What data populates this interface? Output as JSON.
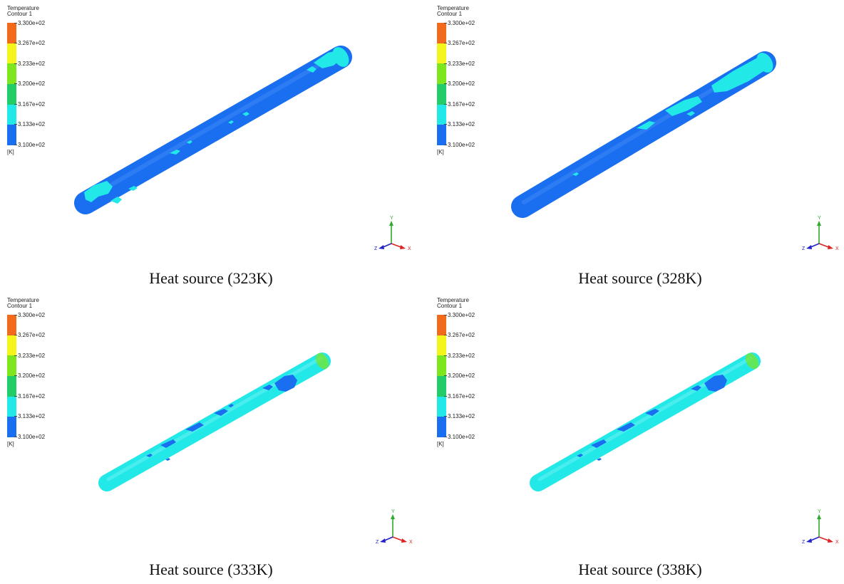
{
  "legend": {
    "title": "Temperature",
    "subtitle": "Contour 1",
    "ticks": [
      "3.300e+02",
      "3.267e+02",
      "3.233e+02",
      "3.200e+02",
      "3.167e+02",
      "3.133e+02",
      "3.100e+02"
    ],
    "unit": "[K]",
    "band_colors": [
      "#f26b1d",
      "#f5f51e",
      "#7ee61e",
      "#22cc66",
      "#22e8e8",
      "#1a6ef0"
    ]
  },
  "axes": {
    "x": "X",
    "y": "Y",
    "z": "Z"
  },
  "panels": [
    {
      "caption": "Heat source (323K)",
      "tube_color": "#1a6ef0",
      "patch_color": "#22e8e8"
    },
    {
      "caption": "Heat source (328K)",
      "tube_color": "#1a6ef0",
      "patch_color": "#22e8e8"
    },
    {
      "caption": "Heat source (333K)",
      "tube_color": "#22e8e8",
      "patch_color": "#1a6ef0"
    },
    {
      "caption": "Heat source (338K)",
      "tube_color": "#22e8e8",
      "patch_color": "#1a6ef0"
    }
  ]
}
